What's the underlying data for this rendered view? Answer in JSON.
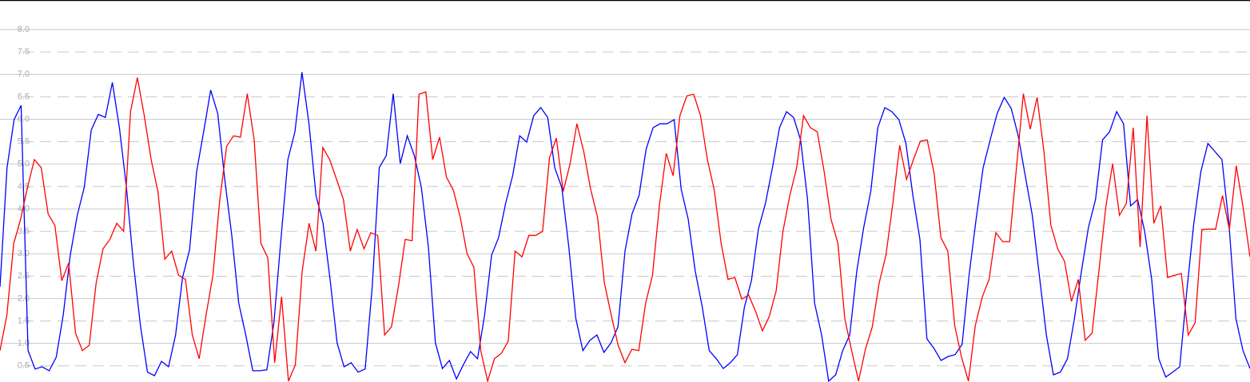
{
  "chart_data": {
    "type": "line",
    "ylim": [
      0.14,
      8.66
    ],
    "yticks": [
      0.5,
      {
        "value": 1,
        "label": "1.0"
      },
      1.5,
      {
        "value": 2,
        "label": "2.0"
      },
      2.5,
      {
        "value": 3,
        "label": "3.0"
      },
      3.5,
      {
        "value": 4,
        "label": "4.0"
      },
      4.5,
      {
        "value": 5,
        "label": "5.0"
      },
      5.5,
      {
        "value": 6,
        "label": "6.0"
      },
      6.5,
      {
        "value": 7,
        "label": "7.0"
      },
      7.5,
      {
        "value": 8,
        "label": "8.0"
      }
    ],
    "grid": true,
    "series": [
      {
        "color": "#0000ff",
        "values": [
          2.26,
          4.92,
          5.99,
          6.31,
          0.84,
          0.43,
          0.48,
          0.39,
          0.69,
          1.63,
          2.97,
          3.86,
          4.48,
          5.76,
          6.11,
          6.04,
          6.82,
          5.81,
          4.48,
          2.79,
          1.4,
          0.36,
          0.28,
          0.6,
          0.48,
          1.19,
          2.47,
          3.09,
          4.83,
          5.72,
          6.65,
          6.13,
          4.66,
          3.41,
          1.9,
          1.19,
          0.39,
          0.39,
          0.41,
          1.46,
          3.32,
          5.1,
          5.72,
          7.05,
          5.9,
          4.3,
          3.68,
          2.43,
          1.01,
          0.48,
          0.57,
          0.36,
          0.43,
          2.26,
          4.92,
          5.19,
          6.57,
          5.01,
          5.63,
          5.19,
          4.48,
          3.15,
          1.01,
          0.44,
          0.62,
          0.21,
          0.53,
          0.82,
          0.66,
          1.63,
          2.97,
          3.36,
          4.12,
          4.74,
          5.63,
          5.49,
          6.08,
          6.26,
          6.04,
          4.92,
          4.48,
          3.15,
          1.55,
          0.84,
          1.07,
          1.19,
          0.8,
          1.01,
          1.37,
          3.06,
          3.89,
          4.3,
          5.33,
          5.81,
          5.9,
          5.9,
          5.99,
          4.44,
          3.77,
          2.61,
          1.81,
          0.84,
          0.66,
          0.44,
          0.57,
          0.75,
          1.81,
          2.4,
          3.55,
          4.12,
          4.92,
          5.81,
          6.17,
          6.04,
          5.54,
          4.21,
          1.9,
          1.19,
          0.16,
          0.3,
          0.84,
          1.19,
          2.61,
          3.59,
          4.39,
          5.81,
          6.26,
          6.17,
          5.99,
          5.46,
          4.3,
          3.32,
          1.1,
          0.89,
          0.62,
          0.71,
          0.75,
          0.98,
          2.52,
          3.77,
          4.92,
          5.54,
          6.13,
          6.49,
          6.24,
          5.63,
          4.74,
          3.86,
          2.52,
          1.19,
          0.3,
          0.36,
          0.66,
          1.55,
          2.61,
          3.59,
          4.21,
          5.54,
          5.72,
          6.17,
          5.9,
          4.07,
          4.21,
          3.5,
          2.43,
          0.66,
          0.25,
          0.36,
          0.48,
          2.17,
          3.68,
          4.83,
          5.46,
          5.28,
          5.1,
          3.68,
          1.55,
          0.84,
          0.44
        ]
      },
      {
        "color": "#ff0000",
        "values": [
          0.84,
          1.63,
          3.23,
          3.77,
          4.48,
          5.1,
          4.92,
          3.89,
          3.63,
          2.4,
          2.79,
          1.23,
          0.84,
          0.96,
          2.35,
          3.11,
          3.32,
          3.68,
          3.5,
          6.17,
          6.93,
          6.08,
          5.1,
          4.39,
          2.88,
          3.06,
          2.52,
          2.43,
          1.19,
          0.66,
          1.63,
          2.52,
          4.21,
          5.4,
          5.63,
          5.6,
          6.57,
          5.54,
          3.23,
          2.91,
          0.57,
          2.04,
          0.16,
          0.52,
          2.61,
          3.68,
          3.06,
          5.37,
          5.1,
          4.66,
          4.21,
          3.06,
          3.54,
          3.11,
          3.47,
          3.41,
          1.19,
          1.37,
          2.26,
          3.32,
          3.29,
          6.56,
          6.61,
          5.1,
          5.6,
          4.71,
          4.42,
          3.82,
          3.0,
          2.7,
          0.84,
          0.16,
          0.66,
          0.78,
          1.05,
          3.06,
          2.93,
          3.41,
          3.41,
          3.5,
          5.14,
          5.58,
          4.39,
          5.01,
          5.9,
          5.28,
          4.44,
          3.82,
          2.35,
          1.63,
          0.96,
          0.57,
          0.87,
          0.84,
          1.9,
          2.52,
          4.07,
          5.24,
          4.74,
          6.08,
          6.52,
          6.56,
          6.08,
          5.1,
          4.42,
          3.23,
          2.43,
          2.47,
          1.99,
          2.08,
          1.72,
          1.28,
          1.6,
          2.17,
          3.5,
          4.3,
          4.92,
          6.08,
          5.81,
          5.72,
          4.83,
          3.77,
          3.23,
          1.55,
          0.84,
          0.16,
          0.87,
          1.37,
          2.35,
          2.97,
          4.12,
          5.42,
          4.66,
          5.1,
          5.51,
          5.54,
          4.8,
          3.36,
          3.06,
          1.4,
          0.69,
          0.16,
          1.4,
          2.03,
          2.43,
          3.47,
          3.27,
          3.27,
          4.92,
          6.57,
          5.78,
          6.49,
          5.28,
          3.64,
          3.11,
          2.83,
          1.94,
          2.43,
          1.07,
          1.23,
          2.61,
          4.03,
          5.01,
          3.86,
          4.12,
          5.81,
          3.15,
          6.08,
          3.68,
          4.07,
          2.47,
          2.52,
          2.56,
          1.19,
          1.46,
          3.54,
          3.55,
          3.55,
          4.3,
          3.54,
          4.96,
          4.03,
          2.93
        ]
      }
    ]
  }
}
